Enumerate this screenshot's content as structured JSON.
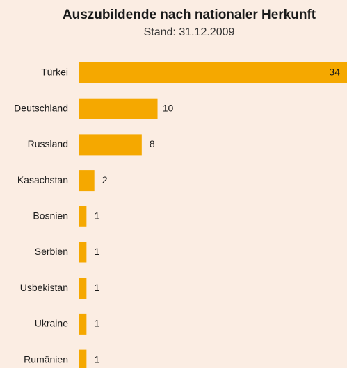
{
  "chart_data": {
    "type": "bar",
    "orientation": "horizontal",
    "title": "Auszubildende nach nationaler Herkunft",
    "subtitle": "Stand: 31.12.2009",
    "categories": [
      "Türkei",
      "Deutschland",
      "Russland",
      "Kasachstan",
      "Bosnien",
      "Serbien",
      "Usbekistan",
      "Ukraine",
      "Rumänien"
    ],
    "values": [
      34,
      10,
      8,
      2,
      1,
      1,
      1,
      1,
      1
    ],
    "color": "#f5a800"
  }
}
